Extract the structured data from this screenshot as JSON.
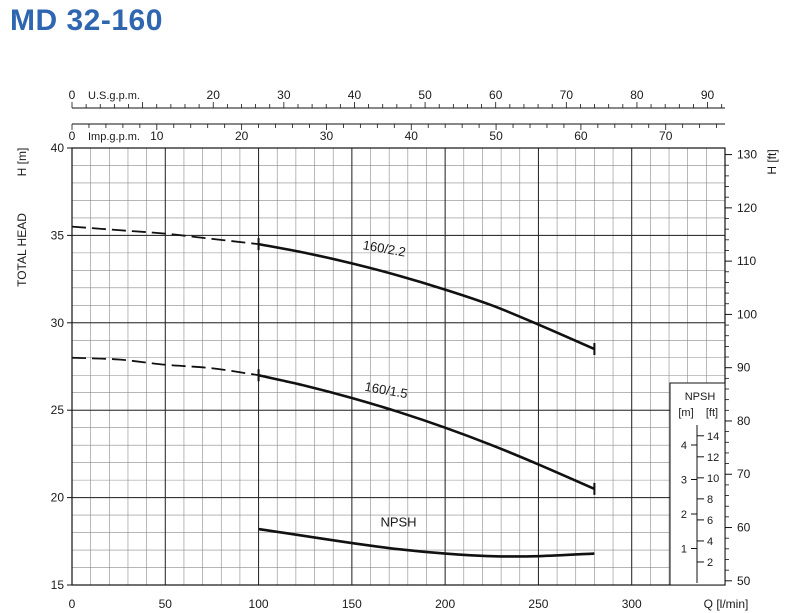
{
  "title": "MD 32-160",
  "chart_data": {
    "type": "line",
    "title": "MD 32-160",
    "x": {
      "label": "Q [l/min]",
      "range": [
        0,
        350
      ],
      "ticks": [
        0,
        50,
        100,
        150,
        200,
        250,
        300
      ]
    },
    "y_left": {
      "label": "TOTAL HEAD",
      "unit": "H [m]",
      "range": [
        15,
        40
      ],
      "ticks": [
        15,
        20,
        25,
        30,
        35,
        40
      ]
    },
    "y_right": {
      "unit": "H [ft]",
      "ticks": [
        50,
        60,
        70,
        80,
        90,
        100,
        110,
        120,
        130
      ]
    },
    "top_axis_usgpm": {
      "label": "U.S.g.p.m.",
      "ticks": [
        0,
        20,
        30,
        40,
        50,
        60,
        70,
        80,
        90
      ]
    },
    "top_axis_impgpm": {
      "label": "Imp.g.p.m.",
      "ticks": [
        0,
        10,
        20,
        30,
        40,
        50,
        60,
        70
      ]
    },
    "npsh_axis": {
      "title": "NPSH",
      "unit_m": "[m]",
      "unit_ft": "[ft]",
      "m_ticks": [
        1,
        2,
        3,
        4
      ],
      "ft_ticks": [
        2,
        4,
        6,
        8,
        10,
        12,
        14
      ]
    },
    "series": [
      {
        "name": "160/2.2",
        "dashed_x_max": 100,
        "x": [
          0,
          25,
          50,
          75,
          100,
          125,
          150,
          175,
          200,
          225,
          250,
          280
        ],
        "y": [
          35.5,
          35.3,
          35.1,
          34.8,
          34.5,
          34.0,
          33.4,
          32.7,
          31.9,
          31.0,
          29.9,
          28.5
        ]
      },
      {
        "name": "160/1.5",
        "dashed_x_max": 100,
        "x": [
          0,
          25,
          50,
          75,
          100,
          125,
          150,
          175,
          200,
          225,
          250,
          280
        ],
        "y": [
          28.0,
          27.9,
          27.6,
          27.4,
          27.0,
          26.4,
          25.7,
          24.9,
          24.0,
          23.0,
          21.9,
          20.5
        ]
      },
      {
        "name": "NPSH",
        "x": [
          100,
          125,
          150,
          175,
          200,
          225,
          250,
          280
        ],
        "y": [
          18.2,
          17.8,
          17.4,
          17.05,
          16.8,
          16.65,
          16.65,
          16.8
        ]
      }
    ]
  }
}
